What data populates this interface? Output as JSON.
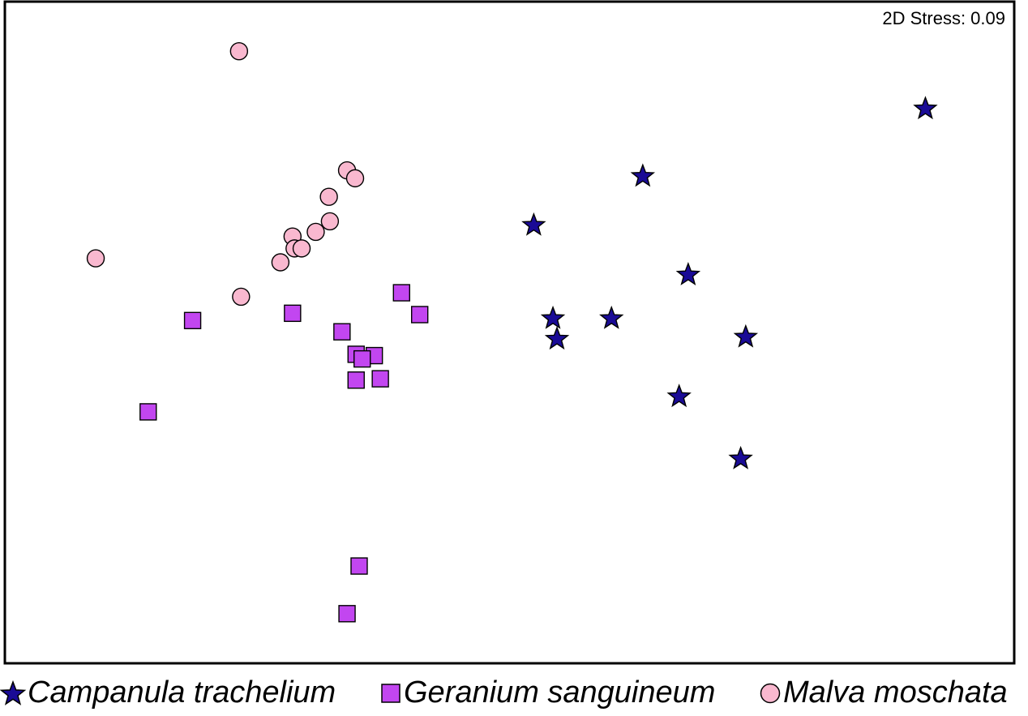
{
  "chart_data": {
    "type": "scatter",
    "annotation": "2D Stress: 0.09",
    "grid": false,
    "legend_position": "bottom",
    "xlim": [
      0,
      1000
    ],
    "ylim": [
      0,
      1000
    ],
    "series": [
      {
        "name": "Campanula trachelium",
        "marker": "star",
        "color": "#1a0b96",
        "points": [
          [
            912,
            838
          ],
          [
            632,
            736
          ],
          [
            524,
            662
          ],
          [
            677,
            587
          ],
          [
            543,
            521
          ],
          [
            601,
            521
          ],
          [
            547,
            490
          ],
          [
            734,
            493
          ],
          [
            668,
            403
          ],
          [
            729,
            309
          ]
        ]
      },
      {
        "name": "Geranium sanguineum",
        "marker": "square",
        "color": "#c246f0",
        "points": [
          [
            393,
            560
          ],
          [
            411,
            527
          ],
          [
            285,
            529
          ],
          [
            186,
            518
          ],
          [
            334,
            501
          ],
          [
            348,
            467
          ],
          [
            366,
            465
          ],
          [
            354,
            460
          ],
          [
            372,
            430
          ],
          [
            348,
            428
          ],
          [
            142,
            380
          ],
          [
            351,
            147
          ],
          [
            339,
            75
          ]
        ]
      },
      {
        "name": "Malva moschata",
        "marker": "circle",
        "color": "#f9b8cf",
        "points": [
          [
            232,
            925
          ],
          [
            339,
            745
          ],
          [
            347,
            733
          ],
          [
            321,
            705
          ],
          [
            322,
            668
          ],
          [
            308,
            652
          ],
          [
            285,
            645
          ],
          [
            287,
            627
          ],
          [
            294,
            627
          ],
          [
            273,
            606
          ],
          [
            90,
            612
          ],
          [
            234,
            554
          ]
        ]
      }
    ]
  }
}
